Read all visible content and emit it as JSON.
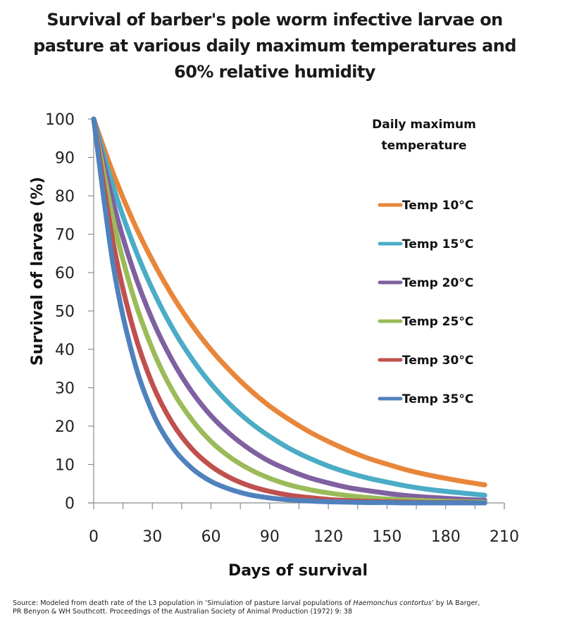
{
  "chart_data": {
    "type": "line",
    "title_lines": [
      "Survival of barber's pole worm infective larvae on",
      "pasture at various daily maximum temperatures and",
      "60% relative humidity"
    ],
    "xlabel": "Days of survival",
    "ylabel": "Survival of larvae (%)",
    "xlim": [
      0,
      210
    ],
    "ylim": [
      0,
      100
    ],
    "x_major_ticks": [
      0,
      30,
      60,
      90,
      120,
      150,
      180,
      210
    ],
    "x_minor_step": 15,
    "y_ticks": [
      0,
      10,
      20,
      30,
      40,
      50,
      60,
      70,
      80,
      90,
      100
    ],
    "grid": false,
    "legend_title_lines": [
      "Daily maximum",
      "temperature"
    ],
    "legend_position": "right",
    "x": [
      0,
      10,
      20,
      30,
      40,
      50,
      60,
      70,
      80,
      90,
      100,
      110,
      120,
      130,
      140,
      150,
      160,
      170,
      180,
      190,
      200
    ],
    "series": [
      {
        "name": "Temp 10°C",
        "color": "#E8863A",
        "values": [
          100,
          85.8,
          73.6,
          63.2,
          54.2,
          46.5,
          39.9,
          34.3,
          29.4,
          25.2,
          21.7,
          18.6,
          16.0,
          13.7,
          11.7,
          10.1,
          8.6,
          7.4,
          6.4,
          5.5,
          4.7
        ]
      },
      {
        "name": "Temp 15°C",
        "color": "#4BACC6",
        "values": [
          100,
          82.3,
          67.7,
          55.7,
          45.8,
          37.7,
          31.0,
          25.5,
          21.0,
          17.3,
          14.2,
          11.7,
          9.6,
          7.9,
          6.5,
          5.4,
          4.4,
          3.6,
          3.0,
          2.5,
          2.0
        ]
      },
      {
        "name": "Temp 20°C",
        "color": "#7F60A0",
        "values": [
          100,
          78.1,
          61.0,
          47.7,
          37.3,
          29.1,
          22.7,
          17.8,
          13.9,
          10.8,
          8.5,
          6.6,
          5.2,
          4.0,
          3.2,
          2.5,
          1.9,
          1.5,
          1.2,
          0.9,
          0.7
        ]
      },
      {
        "name": "Temp 25°C",
        "color": "#9BBB59",
        "values": [
          100,
          73.7,
          54.3,
          40.1,
          29.5,
          21.8,
          16.0,
          11.8,
          8.7,
          6.4,
          4.7,
          3.5,
          2.6,
          1.9,
          1.4,
          1.0,
          0.8,
          0.6,
          0.4,
          0.3,
          0.2
        ]
      },
      {
        "name": "Temp 30°C",
        "color": "#C0504D",
        "values": [
          100,
          67.7,
          45.8,
          31.0,
          21.0,
          14.2,
          9.6,
          6.5,
          4.4,
          3.0,
          2.0,
          1.4,
          0.9,
          0.6,
          0.4,
          0.3,
          0.2,
          0.1,
          0.1,
          0.1,
          0.0
        ]
      },
      {
        "name": "Temp 35°C",
        "color": "#4F81BD",
        "values": [
          100,
          61.9,
          38.3,
          23.7,
          14.7,
          9.1,
          5.6,
          3.5,
          2.1,
          1.3,
          0.8,
          0.5,
          0.3,
          0.2,
          0.1,
          0.1,
          0.0,
          0.0,
          0.0,
          0.0,
          0.0
        ]
      }
    ]
  },
  "source": {
    "prefix": "Source: Modeled from death rate of the L3 population in ‘Simulation of pasture larval populations of ",
    "italic": "Haemonchus contortus",
    "suffix_line1": "’ by IA Barger,",
    "line2": "PR Benyon & WH Southcott. Proceedings of the Australian Society of Animal Production (1972) 9: 38"
  }
}
